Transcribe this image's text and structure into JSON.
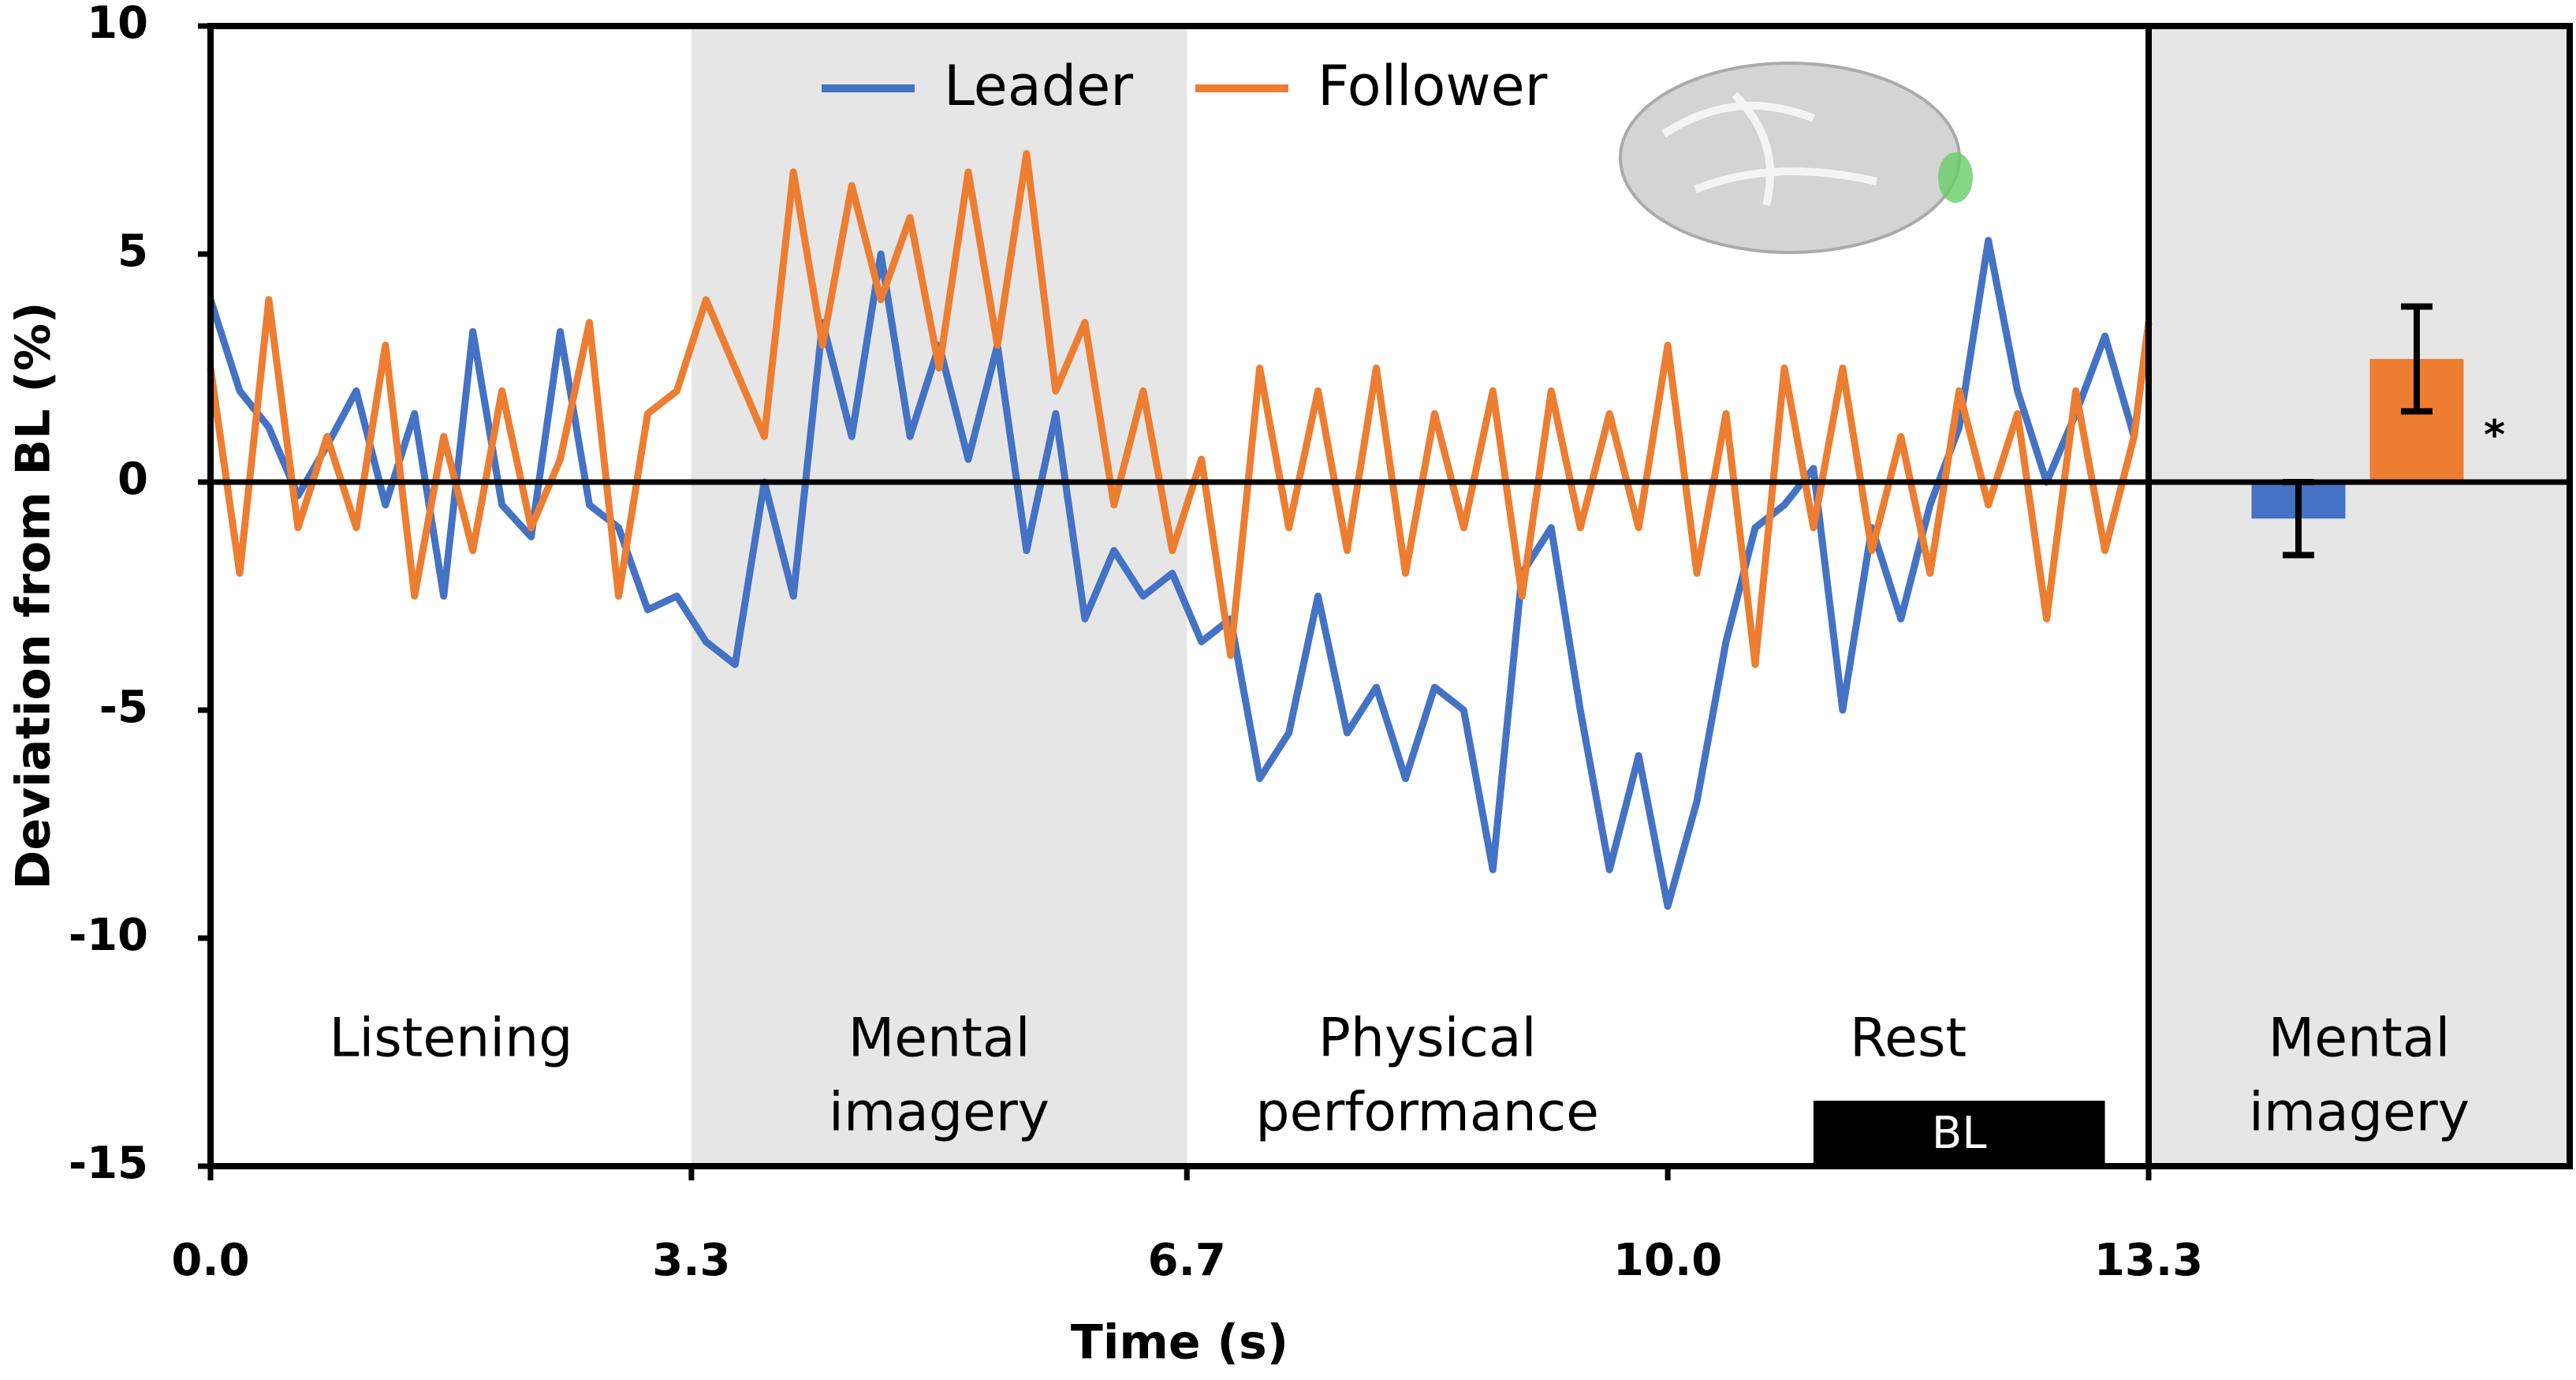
{
  "chart_data": {
    "type": "line",
    "xlabel": "Time (s)",
    "ylabel": "Deviation from BL (%)",
    "xlim": [
      0,
      13.3
    ],
    "ylim": [
      -15,
      10
    ],
    "xticks": [
      {
        "value": 0,
        "label": "0.0"
      },
      3.3,
      6.7,
      {
        "value": 10,
        "label": "10.0"
      },
      13.3
    ],
    "yticks": [
      10,
      5,
      0,
      -5,
      -10,
      -15
    ],
    "x": [
      0,
      0.2,
      0.4,
      0.6,
      0.8,
      1.0,
      1.2,
      1.4,
      1.6,
      1.8,
      2.0,
      2.2,
      2.4,
      2.6,
      2.8,
      3.0,
      3.2,
      3.4,
      3.6,
      3.8,
      4.0,
      4.2,
      4.4,
      4.6,
      4.8,
      5.0,
      5.2,
      5.4,
      5.6,
      5.8,
      6.0,
      6.2,
      6.4,
      6.6,
      6.8,
      7.0,
      7.2,
      7.4,
      7.6,
      7.8,
      8.0,
      8.2,
      8.4,
      8.6,
      8.8,
      9.0,
      9.2,
      9.4,
      9.6,
      9.8,
      10.0,
      10.2,
      10.4,
      10.6,
      10.8,
      11.0,
      11.2,
      11.4,
      11.6,
      11.8,
      12.0,
      12.2,
      12.4,
      12.6,
      12.8,
      13.0,
      13.2,
      13.3
    ],
    "series": [
      {
        "name": "Leader",
        "color": "#4472c4",
        "values": [
          4,
          2,
          1.2,
          -0.3,
          0.8,
          2,
          -0.5,
          1.5,
          -2.5,
          3.3,
          -0.5,
          -1.2,
          3.3,
          -0.5,
          -1,
          -2.8,
          -2.5,
          -3.5,
          -4,
          0,
          -2.5,
          3.5,
          1,
          5,
          1,
          3,
          0.5,
          3,
          -1.5,
          1.5,
          -3,
          -1.5,
          -2.5,
          -2,
          -3.5,
          -3,
          -6.5,
          -5.5,
          -2.5,
          -5.5,
          -4.5,
          -6.5,
          -4.5,
          -5,
          -8.5,
          -2,
          -1,
          -5,
          -8.5,
          -6,
          -9.3,
          -7,
          -3.5,
          -1,
          -0.5,
          0.3,
          -5,
          -1,
          -3,
          -0.5,
          1.2,
          5.3,
          2,
          0,
          1.5,
          3.2,
          1,
          3.5
        ]
      },
      {
        "name": "Follower",
        "color": "#ed7d31",
        "values": [
          2.5,
          -2,
          4,
          -1,
          1,
          -1,
          3,
          -2.5,
          1,
          -1.5,
          2,
          -1,
          0.5,
          3.5,
          -2.5,
          1.5,
          2,
          4,
          2.5,
          1,
          6.8,
          3,
          6.5,
          4,
          5.8,
          2.5,
          6.8,
          3,
          7.2,
          2,
          3.5,
          -0.5,
          2,
          -1.5,
          0.5,
          -3.8,
          2.5,
          -1,
          2,
          -1.5,
          2.5,
          -2,
          1.5,
          -1,
          2,
          -2.5,
          2,
          -1,
          1.5,
          -1,
          3,
          -2,
          1.5,
          -4,
          2.5,
          -1,
          2.5,
          -1.5,
          1,
          -2,
          2,
          -0.5,
          1.5,
          -3,
          2,
          -1.5,
          1,
          3.5
        ]
      }
    ],
    "phases": [
      {
        "lines": [
          "Listening"
        ],
        "start": 0,
        "end": 3.3,
        "shaded": false
      },
      {
        "lines": [
          "Mental",
          "imagery"
        ],
        "start": 3.3,
        "end": 6.7,
        "shaded": true
      },
      {
        "lines": [
          "Physical",
          "performance"
        ],
        "start": 6.7,
        "end": 10.0,
        "shaded": false
      },
      {
        "lines": [
          "Rest"
        ],
        "start": 10.0,
        "end": 13.3,
        "shaded": false
      }
    ],
    "baseline": {
      "label": "BL",
      "start": 11.0,
      "end": 13.0
    },
    "inset": {
      "lines": [
        "Mental",
        "imagery"
      ],
      "values": [
        -0.8,
        2.7
      ],
      "errors": [
        0.8,
        1.15
      ],
      "colors": [
        "#4472c4",
        "#ed7d31"
      ],
      "annotation": "*"
    }
  }
}
